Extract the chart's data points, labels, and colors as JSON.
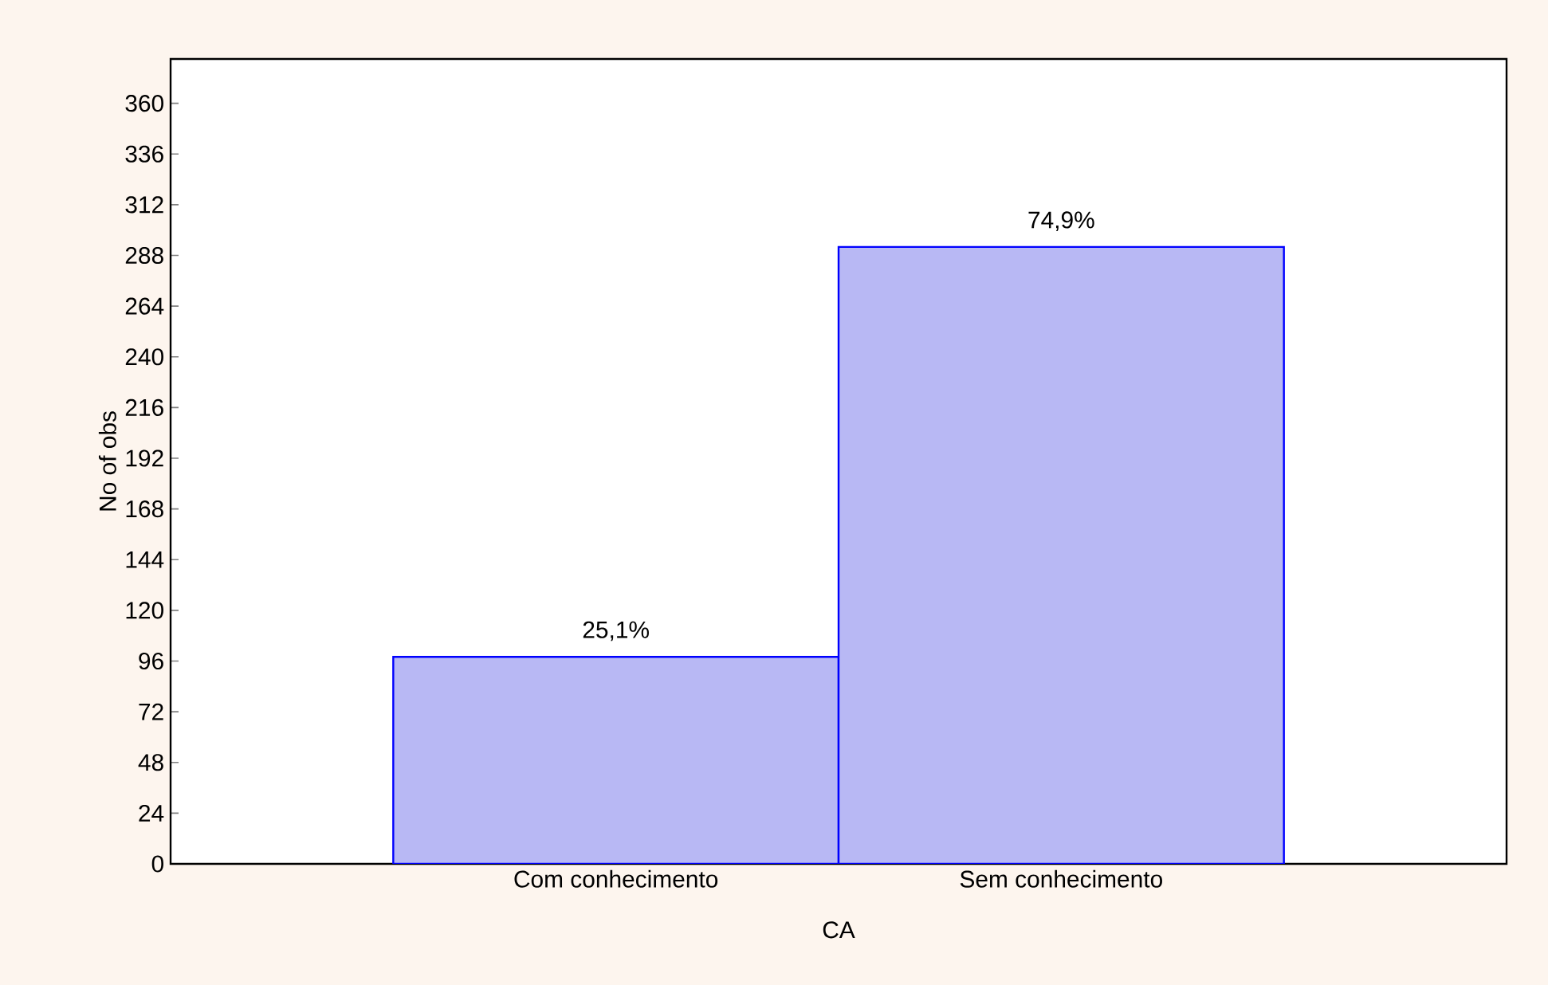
{
  "chart_data": {
    "type": "bar",
    "xlabel": "CA",
    "ylabel": "No of obs",
    "categories": [
      "Com conhecimento",
      "Sem conhecimento"
    ],
    "values": [
      98,
      292
    ],
    "annotations": [
      {
        "text": "25,1%",
        "x": "Com conhecimento",
        "y": 98
      },
      {
        "text": "74,9%",
        "x": "Sem conhecimento",
        "y": 292
      }
    ],
    "color": "#b8b8f4",
    "ylim": [
      0,
      381
    ],
    "yticks": [
      0,
      24,
      48,
      72,
      96,
      120,
      144,
      168,
      192,
      216,
      240,
      264,
      288,
      312,
      336,
      360
    ],
    "grid": false
  }
}
